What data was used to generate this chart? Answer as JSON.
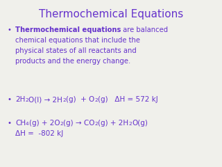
{
  "title": "Thermochemical Equations",
  "title_color": "#6633cc",
  "title_fontsize": 11,
  "background_color": "#f0f0eb",
  "text_color": "#6633cc",
  "font_family": "Comic Sans MS",
  "bullet_fontsize": 7.2,
  "eq_fontsize": 7.5,
  "bullet1_bold": "Thermochemical equations",
  "bullet1_line1_rest": " are balanced",
  "bullet1_lines": [
    "chemical equations that include the",
    "physical states of all reactants and",
    "products and the energy change."
  ],
  "bullet2_parts": [
    {
      "text": "2H",
      "sub": false
    },
    {
      "text": "2",
      "sub": true
    },
    {
      "text": "O(l) → 2H",
      "sub": false
    },
    {
      "text": "2",
      "sub": true
    },
    {
      "text": "(g)  + O",
      "sub": false
    },
    {
      "text": "2",
      "sub": true
    },
    {
      "text": "(g)   ΔH = 572 kJ",
      "sub": false
    }
  ],
  "bullet3_parts": [
    {
      "text": "CH",
      "sub": false
    },
    {
      "text": "4",
      "sub": true
    },
    {
      "text": "(g) + 2O",
      "sub": false
    },
    {
      "text": "2",
      "sub": true
    },
    {
      "text": "(g) → CO",
      "sub": false
    },
    {
      "text": "2",
      "sub": true
    },
    {
      "text": "(g) + 2H",
      "sub": false
    },
    {
      "text": "2",
      "sub": true
    },
    {
      "text": "O(g)",
      "sub": false
    }
  ],
  "bullet3_line2": "ΔH =  -802 kJ"
}
